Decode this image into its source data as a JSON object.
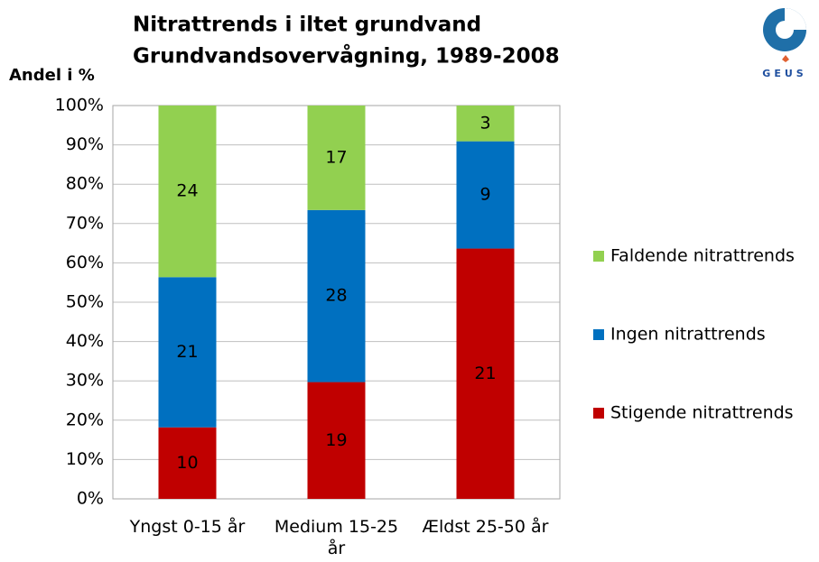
{
  "logo": "GEUS",
  "chart_data": {
    "type": "bar",
    "stacking": "percent",
    "title": "Nitrattrends i iltet grundvand",
    "subtitle": "Grundvandsovervågning, 1989-2008",
    "y_label": "Andel i %",
    "categories": [
      "Yngst 0-15 år",
      "Medium 15-25 år",
      "Ældst 25-50 år"
    ],
    "series": [
      {
        "name": "Stigende nitrattrends",
        "color": "#c00000",
        "values": [
          10,
          19,
          21
        ]
      },
      {
        "name": "Ingen nitrattrends",
        "color": "#0070c0",
        "values": [
          21,
          28,
          9
        ]
      },
      {
        "name": "Faldende nitrattrends",
        "color": "#92d050",
        "values": [
          24,
          17,
          3
        ]
      }
    ],
    "ylim": [
      0,
      100
    ],
    "yticks": [
      {
        "value": 0,
        "label": "0%"
      },
      {
        "value": 10,
        "label": "10%"
      },
      {
        "value": 20,
        "label": "20%"
      },
      {
        "value": 30,
        "label": "30%"
      },
      {
        "value": 40,
        "label": "40%"
      },
      {
        "value": 50,
        "label": "50%"
      },
      {
        "value": 60,
        "label": "60%"
      },
      {
        "value": 70,
        "label": "70%"
      },
      {
        "value": 80,
        "label": "80%"
      },
      {
        "value": 90,
        "label": "90%"
      },
      {
        "value": 100,
        "label": "100%"
      }
    ],
    "grid": true,
    "legend": "right"
  }
}
